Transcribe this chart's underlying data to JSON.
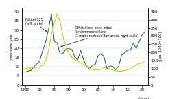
{
  "ylabel_left": "(thousand yen)",
  "ylabel_right": "(Jan. 1980=100)",
  "xlabel": "(year)",
  "ylim_left": [
    0,
    42
  ],
  "ylim_right": [
    0,
    472
  ],
  "yticks_left": [
    0,
    5,
    10,
    15,
    20,
    25,
    30,
    35,
    40
  ],
  "yticks_right": [
    0,
    50,
    100,
    150,
    200,
    250,
    300,
    350,
    400,
    450
  ],
  "xticks": [
    1980,
    1985,
    1990,
    1995,
    2000,
    2005,
    2010,
    2015,
    2020
  ],
  "xtick_labels": [
    "1980",
    "85",
    "90",
    "95",
    "00",
    "05",
    "10",
    "15",
    "20"
  ],
  "nikkei_color": "#1a5c3a",
  "land_color": "#b8d400",
  "annotation_nikkei": "Nikkei 225\n(left scale)",
  "annotation_land": "Official land price index\nfor commercial land\n(3 major metropolitan areas, right scale)",
  "xlim": [
    1979,
    2022
  ],
  "nikkei_years": [
    1980,
    1981,
    1982,
    1983,
    1984,
    1985,
    1986,
    1987,
    1988,
    1989,
    1990,
    1991,
    1992,
    1993,
    1994,
    1995,
    1996,
    1997,
    1998,
    1999,
    2000,
    2001,
    2002,
    2003,
    2004,
    2005,
    2006,
    2007,
    2008,
    2009,
    2010,
    2011,
    2012,
    2013,
    2014,
    2015,
    2016,
    2017,
    2018,
    2019,
    2020,
    2021
  ],
  "nikkei_values": [
    7.1,
    7.7,
    8.0,
    9.9,
    11.5,
    13.1,
    18.7,
    23.3,
    30.2,
    38.9,
    23.8,
    22.9,
    16.9,
    17.4,
    19.7,
    19.9,
    19.4,
    15.3,
    13.8,
    18.9,
    13.8,
    10.5,
    8.6,
    10.7,
    11.5,
    16.1,
    17.2,
    15.3,
    8.9,
    10.5,
    10.2,
    8.5,
    10.4,
    16.3,
    17.5,
    19.0,
    19.1,
    22.8,
    20.0,
    23.7,
    27.4,
    29.0
  ],
  "land_years": [
    1980,
    1981,
    1982,
    1983,
    1984,
    1985,
    1986,
    1987,
    1988,
    1989,
    1990,
    1991,
    1992,
    1993,
    1994,
    1995,
    1996,
    1997,
    1998,
    1999,
    2000,
    2001,
    2002,
    2003,
    2004,
    2005,
    2006,
    2007,
    2008,
    2009,
    2010,
    2011,
    2012,
    2013,
    2014,
    2015,
    2016,
    2017,
    2018,
    2019,
    2020,
    2021
  ],
  "land_values": [
    100,
    104,
    105,
    106,
    108,
    110,
    122,
    148,
    210,
    305,
    380,
    435,
    385,
    295,
    235,
    192,
    170,
    158,
    148,
    136,
    124,
    114,
    106,
    98,
    94,
    93,
    97,
    108,
    108,
    98,
    92,
    88,
    85,
    86,
    89,
    94,
    100,
    112,
    124,
    133,
    136,
    148
  ]
}
